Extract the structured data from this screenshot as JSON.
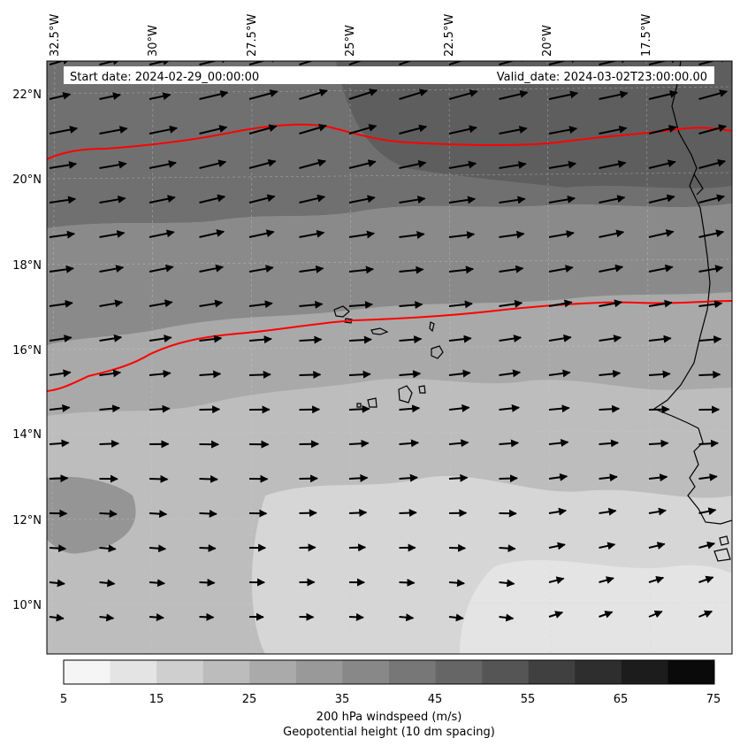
{
  "map": {
    "header": {
      "start_date": "Start date: 2024-02-29_00:00:00",
      "valid_date": "Valid_date: 2024-03-02T23:00:00.00"
    },
    "lon_labels": [
      "32.5°W",
      "30°W",
      "27.5°W",
      "25°W",
      "22.5°W",
      "20°W",
      "17.5°W"
    ],
    "lat_labels": [
      "22°N",
      "20°N",
      "18°N",
      "16°N",
      "14°N",
      "12°N",
      "10°N"
    ],
    "colorbar": {
      "ticks": [
        "5",
        "15",
        "25",
        "35",
        "45",
        "55",
        "65",
        "75"
      ],
      "levels": [
        5,
        10,
        15,
        20,
        25,
        30,
        35,
        40,
        45,
        50,
        55,
        60,
        65,
        70,
        75
      ],
      "colors": [
        "#f5f5f5",
        "#e4e4e4",
        "#cfcfcf",
        "#bcbcbc",
        "#aaaaaa",
        "#999999",
        "#888888",
        "#777777",
        "#666666",
        "#555555",
        "#404040",
        "#2e2e2e",
        "#1c1c1c",
        "#0a0a0a"
      ],
      "label": "200 hPa windspeed (m/s)",
      "sublabel": "Geopotential height (10 dm spacing)",
      "sublabel_color": "#ff0000"
    },
    "contour_color": "#ff0000"
  }
}
